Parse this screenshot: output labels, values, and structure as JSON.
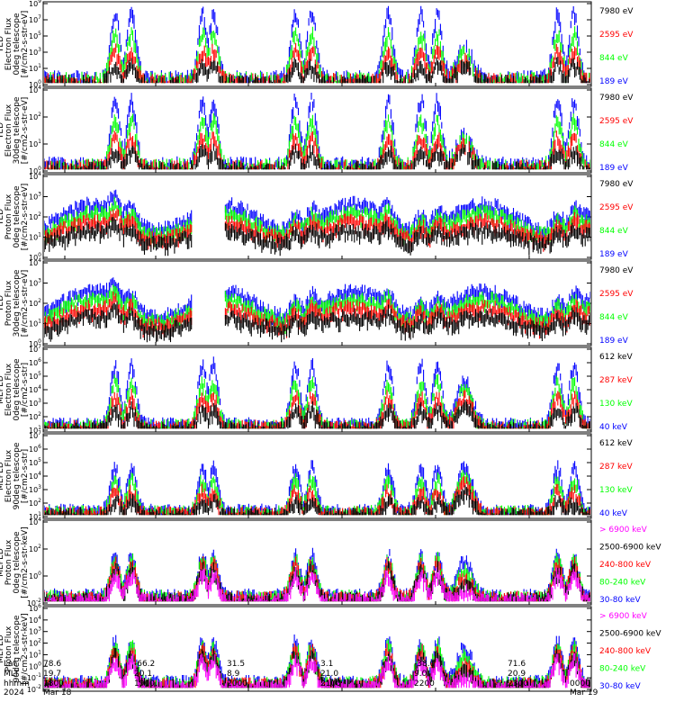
{
  "colors": {
    "black": "#000000",
    "red": "#ff0000",
    "green": "#00ff00",
    "blue": "#0000ff",
    "magenta": "#ff00ff"
  },
  "chart_data": [
    {
      "type": "scatter",
      "ylabel_lines": [
        "TED",
        "Electron Flux",
        "0deg telescope",
        "[#/cm2-s-str-eV]"
      ],
      "yscale": "log",
      "ylim": [
        1,
        1000000000
      ],
      "yticks": [
        "10^9",
        "10^7",
        "10^5",
        "10^3",
        "10^1",
        "10^0"
      ],
      "legend": [
        {
          "label": "7980 eV",
          "color": "black"
        },
        {
          "label": "2595 eV",
          "color": "red"
        },
        {
          "label": "844 eV",
          "color": "green"
        },
        {
          "label": "189 eV",
          "color": "blue"
        }
      ]
    },
    {
      "type": "scatter",
      "ylabel_lines": [
        "TED",
        "Electron Flux",
        "30deg telescope",
        "[#/cm2-s-str-eV]"
      ],
      "yscale": "log",
      "ylim": [
        1,
        100000
      ],
      "yticks": [
        "10^4",
        "10^2",
        "10^1",
        "10^0"
      ],
      "legend": [
        {
          "label": "7980 eV",
          "color": "black"
        },
        {
          "label": "2595 eV",
          "color": "red"
        },
        {
          "label": "844 eV",
          "color": "green"
        },
        {
          "label": "189 eV",
          "color": "blue"
        }
      ]
    },
    {
      "type": "scatter",
      "ylabel_lines": [
        "TED",
        "Proton Flux",
        "0deg telescope",
        "[#/cm2-s-str-eV]"
      ],
      "yscale": "log",
      "ylim": [
        1,
        100000
      ],
      "yticks": [
        "10^4",
        "10^3",
        "10^2",
        "10^1",
        "10^0"
      ],
      "legend": [
        {
          "label": "7980 eV",
          "color": "black"
        },
        {
          "label": "2595 eV",
          "color": "red"
        },
        {
          "label": "844 eV",
          "color": "green"
        },
        {
          "label": "189 eV",
          "color": "blue"
        }
      ]
    },
    {
      "type": "scatter",
      "ylabel_lines": [
        "TED",
        "Proton Flux",
        "30deg telescope",
        "[#/cm2-s-str-eV]"
      ],
      "yscale": "log",
      "ylim": [
        1,
        100000
      ],
      "yticks": [
        "10^4",
        "10^3",
        "10^2",
        "10^1",
        "10^0"
      ],
      "legend": [
        {
          "label": "7980 eV",
          "color": "black"
        },
        {
          "label": "2595 eV",
          "color": "red"
        },
        {
          "label": "844 eV",
          "color": "green"
        },
        {
          "label": "189 eV",
          "color": "blue"
        }
      ]
    },
    {
      "type": "scatter",
      "ylabel_lines": [
        "MEPED",
        "Electron Flux",
        "0deg telescope",
        "[#/cm2-s-str]"
      ],
      "yscale": "log",
      "ylim": [
        10,
        10000000
      ],
      "yticks": [
        "10^7",
        "10^6",
        "10^5",
        "10^4",
        "10^3",
        "10^2",
        "10^1"
      ],
      "legend": [
        {
          "label": "612 keV",
          "color": "black"
        },
        {
          "label": "287 keV",
          "color": "red"
        },
        {
          "label": "130 keV",
          "color": "green"
        },
        {
          "label": "40 keV",
          "color": "blue"
        }
      ]
    },
    {
      "type": "scatter",
      "ylabel_lines": [
        "MEPED",
        "Electron Flux",
        "90deg telescope",
        "[#/cm2-s-str]"
      ],
      "yscale": "log",
      "ylim": [
        10,
        10000000
      ],
      "yticks": [
        "10^7",
        "10^6",
        "10^5",
        "10^4",
        "10^3",
        "10^2",
        "10^1"
      ],
      "legend": [
        {
          "label": "612 keV",
          "color": "black"
        },
        {
          "label": "287 keV",
          "color": "red"
        },
        {
          "label": "130 keV",
          "color": "green"
        },
        {
          "label": "40 keV",
          "color": "blue"
        }
      ]
    },
    {
      "type": "scatter",
      "ylabel_lines": [
        "MEPED",
        "Proton Flux",
        "0deg telescope",
        "[#/cm2-s-str-keV]"
      ],
      "yscale": "log",
      "ylim": [
        0.01,
        100000
      ],
      "yticks": [
        "10^4",
        "10^2",
        "10^0",
        "10^-2"
      ],
      "legend": [
        {
          "label": "> 6900 keV",
          "color": "magenta"
        },
        {
          "label": "2500-6900 keV",
          "color": "black"
        },
        {
          "label": "240-800 keV",
          "color": "red"
        },
        {
          "label": "80-240 keV",
          "color": "green"
        },
        {
          "label": "30-80 keV",
          "color": "blue"
        }
      ]
    },
    {
      "type": "scatter",
      "ylabel_lines": [
        "MEPED",
        "Proton Flux",
        "90deg telescope",
        "[#/cm2-s-str-keV]"
      ],
      "yscale": "log",
      "ylim": [
        0.01,
        100000
      ],
      "yticks": [
        "10^6",
        "10^4",
        "10^3",
        "10^2",
        "10^1",
        "10^0",
        "10^-1",
        "10^-2"
      ],
      "legend": [
        {
          "label": "> 6900 keV",
          "color": "magenta"
        },
        {
          "label": "2500-6900 keV",
          "color": "black"
        },
        {
          "label": "240-800 keV",
          "color": "red"
        },
        {
          "label": "80-240 keV",
          "color": "green"
        },
        {
          "label": "30-80 keV",
          "color": "blue"
        }
      ]
    }
  ],
  "xaxis": {
    "row_labels": [
      "Lat",
      "MLT",
      "hhmm",
      "2024"
    ],
    "columns": [
      {
        "lat": "78.6",
        "mlt": "19.7",
        "hhmm": "1800",
        "date": "Mar 18"
      },
      {
        "lat": "-66.2",
        "mlt": "20.1",
        "hhmm": "1900",
        "date": ""
      },
      {
        "lat": "31.5",
        "mlt": "8.9",
        "hhmm": "2000",
        "date": ""
      },
      {
        "lat": "3.1",
        "mlt": "21.0",
        "hhmm": "2100",
        "date": ""
      },
      {
        "lat": "-38.0",
        "mlt": "9.0",
        "hhmm": "2200",
        "date": ""
      },
      {
        "lat": "71.6",
        "mlt": "20.9",
        "hhmm": "2300",
        "date": ""
      },
      {
        "lat": "",
        "mlt": "",
        "hhmm": "0000",
        "date": "Mar 19"
      }
    ]
  }
}
